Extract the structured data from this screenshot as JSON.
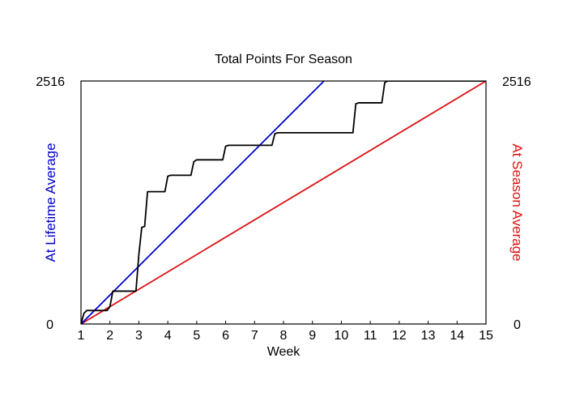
{
  "chart_data": {
    "type": "line",
    "title": "Total Points For Season",
    "xlabel": "Week",
    "ylabel_left": "At Lifetime Average",
    "ylabel_right": "At Season Average",
    "xlim": [
      1,
      15
    ],
    "ylim": [
      0,
      2516
    ],
    "xticks": [
      "1",
      "2",
      "3",
      "4",
      "5",
      "6",
      "7",
      "8",
      "9",
      "10",
      "11",
      "12",
      "13",
      "14",
      "15"
    ],
    "yticks_left": [
      "0",
      "2516"
    ],
    "yticks_right": [
      "0",
      "2516"
    ],
    "colors": {
      "actual": "#000000",
      "lifetime": "#0000cc",
      "season": "#dd1111",
      "left_label": "#0000cc",
      "right_label": "#dd1111"
    },
    "series": [
      {
        "key": "actual",
        "x": [
          1.0,
          1.1,
          1.2,
          1.9,
          2.0,
          2.1,
          2.9,
          3.0,
          3.1,
          3.2,
          3.3,
          3.4,
          3.9,
          4.0,
          4.1,
          4.8,
          4.9,
          5.0,
          5.1,
          5.9,
          6.0,
          6.1,
          7.6,
          7.7,
          7.8,
          10.4,
          10.5,
          10.6,
          11.4,
          11.5,
          11.6,
          15.0
        ],
        "y": [
          0,
          110,
          140,
          140,
          180,
          340,
          340,
          720,
          1000,
          1010,
          1370,
          1370,
          1370,
          1530,
          1540,
          1540,
          1680,
          1700,
          1700,
          1700,
          1840,
          1850,
          1850,
          1970,
          1980,
          1980,
          2280,
          2290,
          2290,
          2500,
          2516,
          2516
        ]
      },
      {
        "key": "lifetime",
        "x": [
          1,
          9.4
        ],
        "y": [
          0,
          2516
        ]
      },
      {
        "key": "season",
        "x": [
          1,
          15
        ],
        "y": [
          0,
          2516
        ]
      }
    ]
  }
}
